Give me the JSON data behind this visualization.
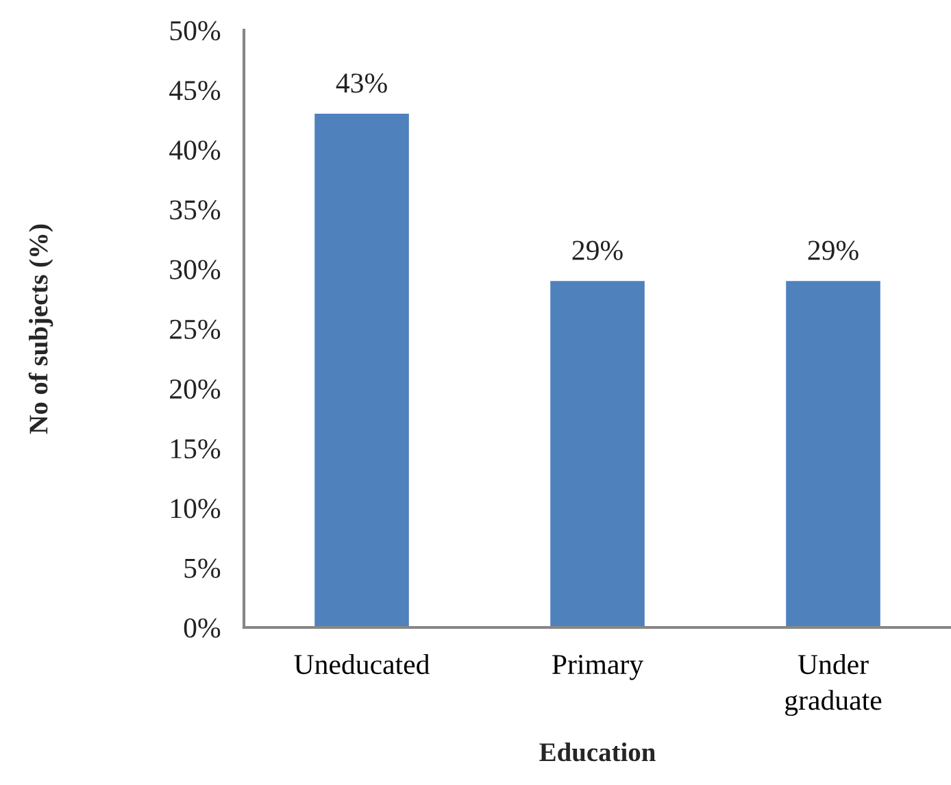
{
  "chart_data": {
    "type": "bar",
    "xlabel": "Education",
    "ylabel": "No of subjects (%)",
    "categories": [
      "Uneducated",
      "Primary",
      "Under\ngraduate"
    ],
    "values": [
      43,
      29,
      29
    ],
    "value_labels": [
      "43%",
      "29%",
      "29%"
    ],
    "color": "#4f81bd",
    "ylim": [
      0,
      50
    ],
    "yticks": [
      {
        "value": 0,
        "label": "0%"
      },
      {
        "value": 5,
        "label": "5%"
      },
      {
        "value": 10,
        "label": "10%"
      },
      {
        "value": 15,
        "label": "15%"
      },
      {
        "value": 20,
        "label": "20%"
      },
      {
        "value": 25,
        "label": "25%"
      },
      {
        "value": 30,
        "label": "30%"
      },
      {
        "value": 35,
        "label": "35%"
      },
      {
        "value": 40,
        "label": "40%"
      },
      {
        "value": 45,
        "label": "45%"
      },
      {
        "value": 50,
        "label": "50%"
      }
    ]
  }
}
